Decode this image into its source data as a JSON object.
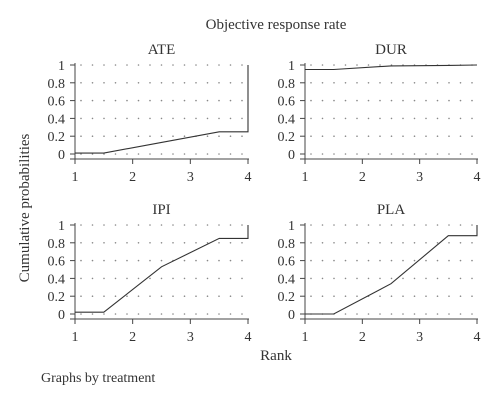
{
  "title": "Objective response rate",
  "ylabel": "Cumulative probabilities",
  "xlabel": "Rank",
  "note": "Graphs by treatment",
  "chart_data": {
    "type": "line",
    "title": "Objective response rate",
    "xlabel": "Rank",
    "ylabel": "Cumulative probabilities",
    "xlim": [
      1,
      4
    ],
    "ylim": [
      0,
      1
    ],
    "x_ticks": [
      "1",
      "2",
      "3",
      "4"
    ],
    "y_ticks": [
      "0",
      "0.2",
      "0.4",
      "0.6",
      "0.8",
      "1"
    ],
    "grid": true,
    "panels": [
      {
        "name": "ATE",
        "x": [
          1,
          1.5,
          2.5,
          3.5,
          4,
          4
        ],
        "y": [
          0.01,
          0.01,
          0.13,
          0.25,
          0.25,
          1.0
        ]
      },
      {
        "name": "DUR",
        "x": [
          1,
          1.5,
          2.5,
          3.5,
          4,
          4
        ],
        "y": [
          0.95,
          0.95,
          0.99,
          0.995,
          1.0,
          1.0
        ]
      },
      {
        "name": "IPI",
        "x": [
          1,
          1.5,
          2.5,
          3.5,
          4,
          4
        ],
        "y": [
          0.02,
          0.02,
          0.53,
          0.85,
          0.85,
          1.0
        ]
      },
      {
        "name": "PLA",
        "x": [
          1,
          1.5,
          2.5,
          3.5,
          4,
          4
        ],
        "y": [
          0.0,
          0.0,
          0.34,
          0.88,
          0.88,
          1.0
        ]
      }
    ]
  }
}
